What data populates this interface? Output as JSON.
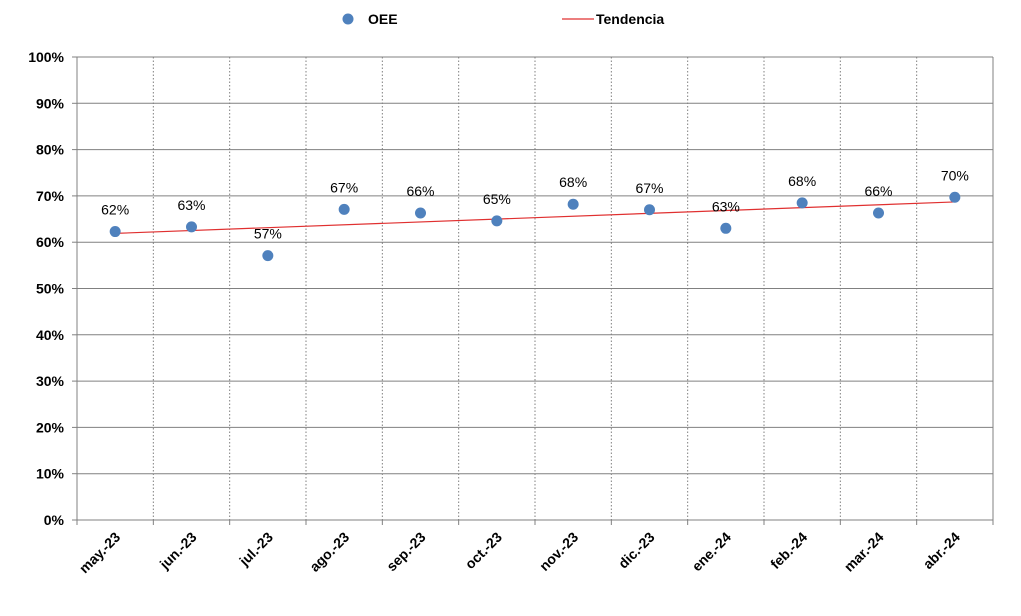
{
  "chart_data": {
    "type": "scatter",
    "categories": [
      "may.-23",
      "jun.-23",
      "jul.-23",
      "ago.-23",
      "sep.-23",
      "oct.-23",
      "nov.-23",
      "dic.-23",
      "ene.-24",
      "feb.-24",
      "mar.-24",
      "abr.-24"
    ],
    "series": [
      {
        "name": "OEE",
        "values": [
          0.623,
          0.633,
          0.571,
          0.671,
          0.663,
          0.646,
          0.682,
          0.67,
          0.63,
          0.685,
          0.663,
          0.697
        ],
        "data_labels": [
          "62%",
          "63%",
          "57%",
          "67%",
          "66%",
          "65%",
          "68%",
          "67%",
          "63%",
          "68%",
          "66%",
          "70%"
        ],
        "marker_color": "#4f81bd"
      },
      {
        "name": "Tendencia",
        "kind": "linear-trendline",
        "start_value": 0.619,
        "end_value": 0.687,
        "line_color": "#e03030"
      }
    ],
    "ylim": [
      0,
      1
    ],
    "y_ticks": [
      0,
      0.1,
      0.2,
      0.3,
      0.4,
      0.5,
      0.6,
      0.7,
      0.8,
      0.9,
      1.0
    ],
    "y_tick_labels": [
      "0%",
      "10%",
      "20%",
      "30%",
      "40%",
      "50%",
      "60%",
      "70%",
      "80%",
      "90%",
      "100%"
    ],
    "xlabel": "",
    "ylabel": "",
    "title": "",
    "grid": {
      "horizontal": "solid",
      "vertical": "dotted",
      "color": "#808080"
    },
    "legend": {
      "placement": "top",
      "entries": [
        "OEE",
        "Tendencia"
      ]
    }
  }
}
